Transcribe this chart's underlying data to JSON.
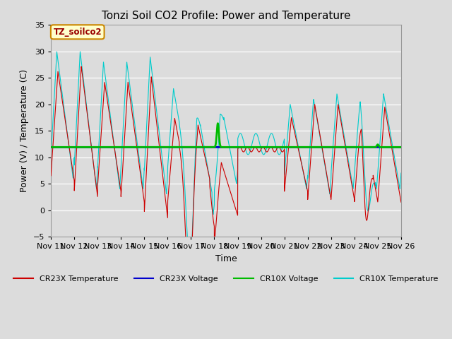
{
  "title": "Tonzi Soil CO2 Profile: Power and Temperature",
  "xlabel": "Time",
  "ylabel": "Power (V) / Temperature (C)",
  "ylim": [
    -5,
    35
  ],
  "yticks": [
    -5,
    0,
    5,
    10,
    15,
    20,
    25,
    30,
    35
  ],
  "x_tick_days": [
    11,
    12,
    13,
    14,
    15,
    16,
    17,
    18,
    19,
    20,
    21,
    22,
    23,
    24,
    25,
    26
  ],
  "background_color": "#dcdcdc",
  "plot_bg_color": "#dcdcdc",
  "annotation_text": "TZ_soilco2",
  "annotation_box_color": "#ffffcc",
  "annotation_box_edge": "#cc8800",
  "cr23x_temp_color": "#cc0000",
  "cr23x_volt_color": "#0000cc",
  "cr10x_volt_color": "#00bb00",
  "cr10x_temp_color": "#00cccc",
  "cr23x_volt_value": 11.9,
  "cr10x_volt_value": 11.9,
  "legend_labels": [
    "CR23X Temperature",
    "CR23X Voltage",
    "CR10X Voltage",
    "CR10X Temperature"
  ],
  "legend_colors": [
    "#cc0000",
    "#0000cc",
    "#00bb00",
    "#00cccc"
  ]
}
